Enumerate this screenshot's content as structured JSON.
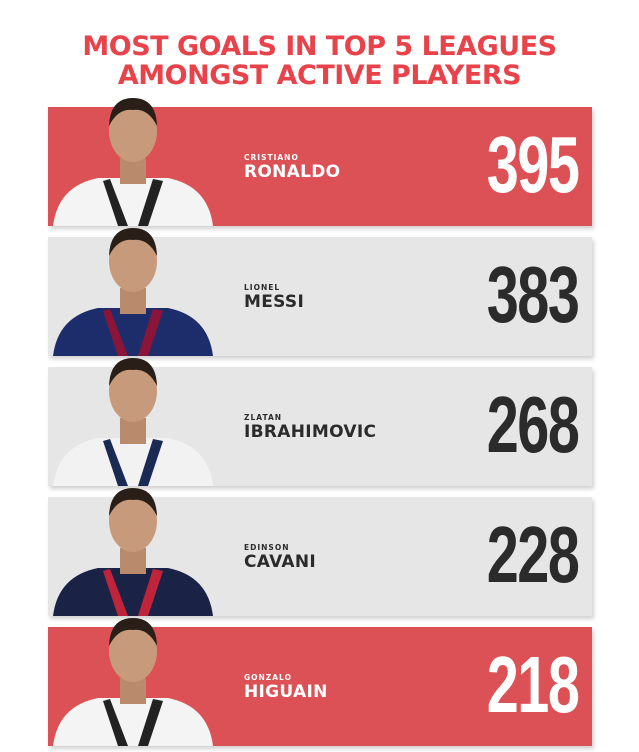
{
  "title": {
    "line1": "MOST GOALS IN TOP 5 LEAGUES",
    "line2": "AMONGST ACTIVE PLAYERS"
  },
  "colors": {
    "accent": "#dc5156",
    "title": "#e8434b",
    "gray": "#e6e6e6",
    "dark": "#2b2b2b"
  },
  "players": [
    {
      "first": "CRISTIANO",
      "last": "RONALDO",
      "goals": "395",
      "style": "red",
      "shirt": "juventus-stripes"
    },
    {
      "first": "LIONEL",
      "last": "MESSI",
      "goals": "383",
      "style": "gray",
      "shirt": "barcelona"
    },
    {
      "first": "ZLATAN",
      "last": "IBRAHIMOVIC",
      "goals": "268",
      "style": "gray",
      "shirt": "la-galaxy-white"
    },
    {
      "first": "EDINSON",
      "last": "CAVANI",
      "goals": "228",
      "style": "gray",
      "shirt": "psg-navy"
    },
    {
      "first": "GONZALO",
      "last": "HIGUAIN",
      "goals": "218",
      "style": "red",
      "shirt": "juventus-stripes"
    }
  ]
}
